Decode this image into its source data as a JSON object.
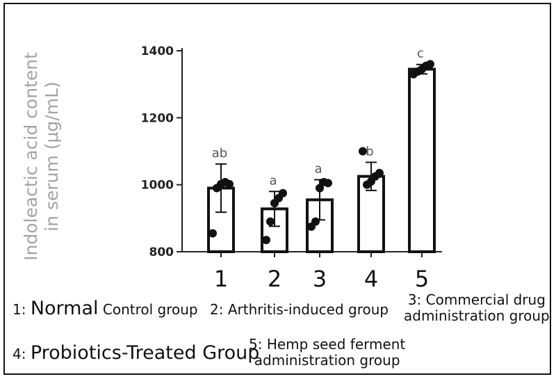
{
  "chart_data": {
    "type": "bar",
    "categories": [
      "1",
      "2",
      "3",
      "4",
      "5"
    ],
    "values": [
      990,
      928,
      955,
      1025,
      1345
    ],
    "error": [
      72,
      52,
      60,
      42,
      14
    ],
    "significance": [
      "ab",
      "a",
      "a",
      "b",
      "c"
    ],
    "points": [
      [
        855,
        990,
        1002,
        1008,
        1002
      ],
      [
        835,
        890,
        945,
        960,
        975
      ],
      [
        875,
        890,
        990,
        1008,
        1005
      ],
      [
        1100,
        1000,
        1010,
        1025,
        1035
      ],
      [
        1330,
        1338,
        1345,
        1355,
        1360
      ]
    ],
    "ylabel_line1": "Indoleactic acid content",
    "ylabel_line2": "in serum (μg/mL)",
    "yticks": [
      "800",
      "1000",
      "1200",
      "1400"
    ],
    "ylim": [
      800,
      1400
    ],
    "grid": false
  },
  "captions": {
    "c1_num": "1: ",
    "c1_big": "Normal",
    "c1_small": " Control group",
    "c2": "2: Arthritis-induced group",
    "c3_line1": "3: Commercial drug",
    "c3_line2": "administration group",
    "c4_num": "4: ",
    "c4_big": "Probiotics-Treated Group",
    "c5_line1": "5: Hemp seed ferment",
    "c5_line2": "administration group"
  }
}
